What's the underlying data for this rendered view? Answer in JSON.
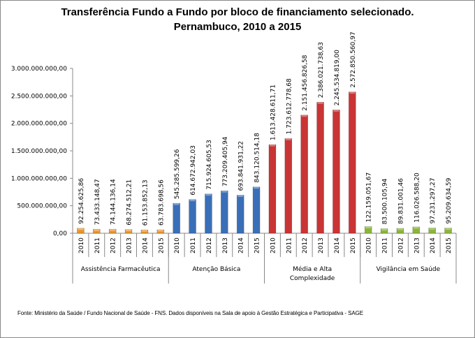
{
  "chart_data": {
    "type": "bar",
    "title_line1": "Transferência Fundo a Fundo por bloco de financiamento selecionado.",
    "title_line2": "Pernambuco, 2010 a 2015",
    "ylim": [
      0,
      3000000000
    ],
    "y_ticks": [
      "0,00",
      "500.000.000,00",
      "1.000.000.000,00",
      "1.500.000.000,00",
      "2.000.000.000,00",
      "2.500.000.000,00",
      "3.000.000.000,00"
    ],
    "years": [
      "2010",
      "2011",
      "2012",
      "2013",
      "2014",
      "2015"
    ],
    "grid": false,
    "legend": "none",
    "groups": [
      {
        "name": "Assistência Farmacêutica",
        "color": "#e8962a",
        "values": [
          92254625.86,
          73433148.47,
          74144136.14,
          68274512.21,
          61153852.13,
          63783698.56
        ],
        "labels": [
          "92.254.625,86",
          "73.433.148,47",
          "74.144.136,14",
          "68.274.512,21",
          "61.153.852,13",
          "63.783.698,56"
        ]
      },
      {
        "name": "Atenção Básica",
        "color": "#3a6fb8",
        "values": [
          545285599.26,
          614672942.03,
          715924605.53,
          773209405.94,
          693841931.22,
          843120514.18
        ],
        "labels": [
          "545.285.599,26",
          "614.672.942,03",
          "715.924.605,53",
          "773.209.405,94",
          "693.841.931,22",
          "843.120.514,18"
        ]
      },
      {
        "name": "Média e Alta Complexidade",
        "name_line1": "Média e Alta",
        "name_line2": "Complexidade",
        "color": "#c93434",
        "values": [
          1613428611.71,
          1723612778.68,
          2151456826.58,
          2386021738.63,
          2245534819.0,
          2572850560.97
        ],
        "labels": [
          "1.613.428.611,71",
          "1.723.612.778,68",
          "2.151.456.826,58",
          "2.386.021.738,63",
          "2.245.534.819,00",
          "2.572.850.560,97"
        ]
      },
      {
        "name": "Vigilância em Saúde",
        "color": "#8ab53a",
        "values": [
          122159051.67,
          83500105.94,
          89831001.46,
          116026588.2,
          97231297.27,
          95209634.59
        ],
        "labels": [
          "122.159.051,67",
          "83.500.105,94",
          "89.831.001,46",
          "116.026.588,20",
          "97.231.297,27",
          "95.209.634,59"
        ]
      }
    ]
  },
  "source": "Fonte: Ministério da Saúde / Fundo Nacional de Saúde - FNS. Dados disponíveis na Sala de apoio à Gestão Estratégica e Participativa - SAGE"
}
